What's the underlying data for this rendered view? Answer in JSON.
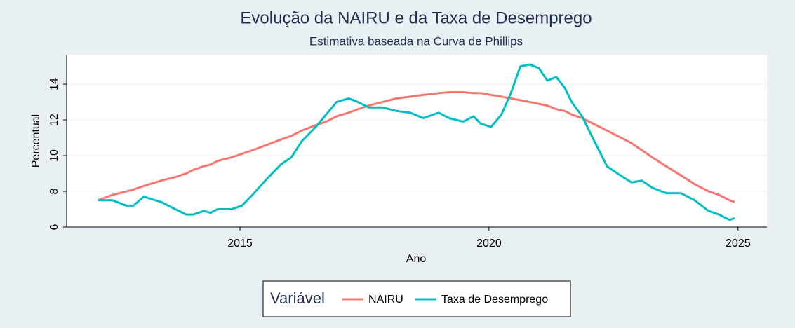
{
  "chart_data": {
    "type": "line",
    "title": "Evolução da NAIRU e da Taxa de Desemprego",
    "subtitle": "Estimativa baseada na Curva de Phillips",
    "x_label": "Ano",
    "y_label": "Percentual",
    "legend_title": "Variável",
    "x": [
      2012.15,
      2012.44,
      2012.72,
      2012.86,
      2013.07,
      2013.42,
      2013.7,
      2013.92,
      2014.06,
      2014.27,
      2014.41,
      2014.55,
      2014.83,
      2015.04,
      2015.25,
      2015.54,
      2015.82,
      2016.03,
      2016.24,
      2016.52,
      2016.73,
      2016.94,
      2017.18,
      2017.37,
      2017.58,
      2017.86,
      2018.14,
      2018.42,
      2018.68,
      2018.99,
      2019.2,
      2019.48,
      2019.69,
      2019.83,
      2020.04,
      2020.25,
      2020.44,
      2020.63,
      2020.82,
      2021.0,
      2021.17,
      2021.35,
      2021.52,
      2021.66,
      2021.87,
      2022.08,
      2022.37,
      2022.58,
      2022.86,
      2023.07,
      2023.28,
      2023.56,
      2023.85,
      2024.13,
      2024.41,
      2024.62,
      2024.83,
      2024.93
    ],
    "series": [
      {
        "name": "NAIRU",
        "color": "#f8766d",
        "values": [
          7.5,
          7.8,
          8.0,
          8.1,
          8.3,
          8.6,
          8.8,
          9.0,
          9.2,
          9.4,
          9.5,
          9.7,
          9.9,
          10.1,
          10.3,
          10.6,
          10.9,
          11.1,
          11.4,
          11.7,
          11.9,
          12.2,
          12.4,
          12.6,
          12.8,
          13.0,
          13.2,
          13.3,
          13.4,
          13.5,
          13.55,
          13.55,
          13.5,
          13.5,
          13.4,
          13.3,
          13.2,
          13.1,
          13.0,
          12.9,
          12.8,
          12.6,
          12.5,
          12.3,
          12.1,
          11.8,
          11.4,
          11.1,
          10.7,
          10.3,
          9.9,
          9.4,
          8.9,
          8.4,
          8.0,
          7.8,
          7.5,
          7.4
        ]
      },
      {
        "name": "Taxa de Desemprego",
        "color": "#00bfc4",
        "values": [
          7.5,
          7.5,
          7.2,
          7.2,
          7.7,
          7.4,
          7.0,
          6.7,
          6.7,
          6.9,
          6.8,
          7.0,
          7.0,
          7.2,
          7.8,
          8.7,
          9.5,
          9.9,
          10.8,
          11.6,
          12.3,
          13.0,
          13.2,
          13.0,
          12.7,
          12.7,
          12.5,
          12.4,
          12.1,
          12.4,
          12.1,
          11.9,
          12.2,
          11.8,
          11.6,
          12.3,
          13.5,
          15.0,
          15.1,
          14.9,
          14.2,
          14.4,
          13.8,
          13.0,
          12.2,
          11.0,
          9.4,
          9.0,
          8.5,
          8.6,
          8.2,
          7.9,
          7.9,
          7.5,
          6.9,
          6.7,
          6.4,
          6.5
        ]
      }
    ],
    "xlim": [
      2011.52,
      2025.58
    ],
    "xticks": [
      2015,
      2020,
      2025
    ],
    "ylim": [
      6,
      15.65
    ],
    "yticks": [
      6,
      8,
      10,
      12,
      14
    ],
    "grid": true
  }
}
